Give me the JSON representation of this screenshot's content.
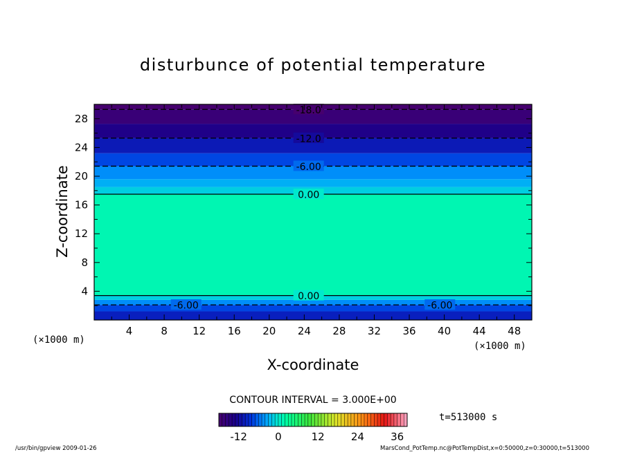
{
  "chart_data": {
    "type": "contour",
    "title": "disturbunce of potential temperature",
    "xlabel": "X-coordinate",
    "ylabel": "Z-coordinate",
    "x_unit": "(×1000 m)",
    "y_unit": "(×1000 m)",
    "xlim": [
      0,
      50
    ],
    "ylim": [
      0,
      30
    ],
    "x_ticks": [
      4,
      8,
      12,
      16,
      20,
      24,
      28,
      32,
      36,
      40,
      44,
      48
    ],
    "y_ticks": [
      4,
      8,
      12,
      16,
      20,
      24,
      28
    ],
    "contour_interval_text": "CONTOUR INTERVAL = 3.000E+00",
    "time_label": "t=513000 s",
    "colorbar": {
      "min": -18,
      "max": 39,
      "ticks": [
        -12,
        0,
        12,
        24,
        36
      ]
    },
    "contours": [
      {
        "label": "-18.0",
        "value": -18,
        "z": 29.3,
        "dashed": true
      },
      {
        "label": "-12.0",
        "value": -12,
        "z": 25.3,
        "dashed": true
      },
      {
        "label": "-6.00",
        "value": -6,
        "z": 21.4,
        "dashed": true
      },
      {
        "label": "0.00",
        "value": 0,
        "z": 17.5,
        "dashed": false
      },
      {
        "label": "0.00",
        "value": 0,
        "z": 3.4,
        "dashed": false
      },
      {
        "label": "-6.00",
        "value": -6,
        "z": 2.1,
        "dashed": true,
        "positions": [
          10.5,
          39.5
        ]
      }
    ],
    "field_bands": [
      {
        "z0": 0,
        "z1": 1.2,
        "value": -10
      },
      {
        "z0": 1.2,
        "z1": 2.1,
        "value": -7.5
      },
      {
        "z0": 2.1,
        "z1": 2.8,
        "value": -4.5
      },
      {
        "z0": 2.8,
        "z1": 3.4,
        "value": -1.5
      },
      {
        "z0": 3.4,
        "z1": 17.5,
        "value": 1.5
      },
      {
        "z0": 17.5,
        "z1": 18.5,
        "value": -1.5
      },
      {
        "z0": 18.5,
        "z1": 19.6,
        "value": -3
      },
      {
        "z0": 19.6,
        "z1": 21.4,
        "value": -4.5
      },
      {
        "z0": 21.4,
        "z1": 23.2,
        "value": -7.5
      },
      {
        "z0": 23.2,
        "z1": 25.3,
        "value": -10.5
      },
      {
        "z0": 25.3,
        "z1": 27.3,
        "value": -13.5
      },
      {
        "z0": 27.3,
        "z1": 29.3,
        "value": -16.5
      },
      {
        "z0": 29.3,
        "z1": 30,
        "value": -19.5
      }
    ]
  },
  "footer": {
    "left": "/usr/bin/gpview   2009-01-26",
    "right": "MarsCond_PotTemp.nc@PotTempDist,x=0:50000,z=0:30000,t=513000"
  }
}
